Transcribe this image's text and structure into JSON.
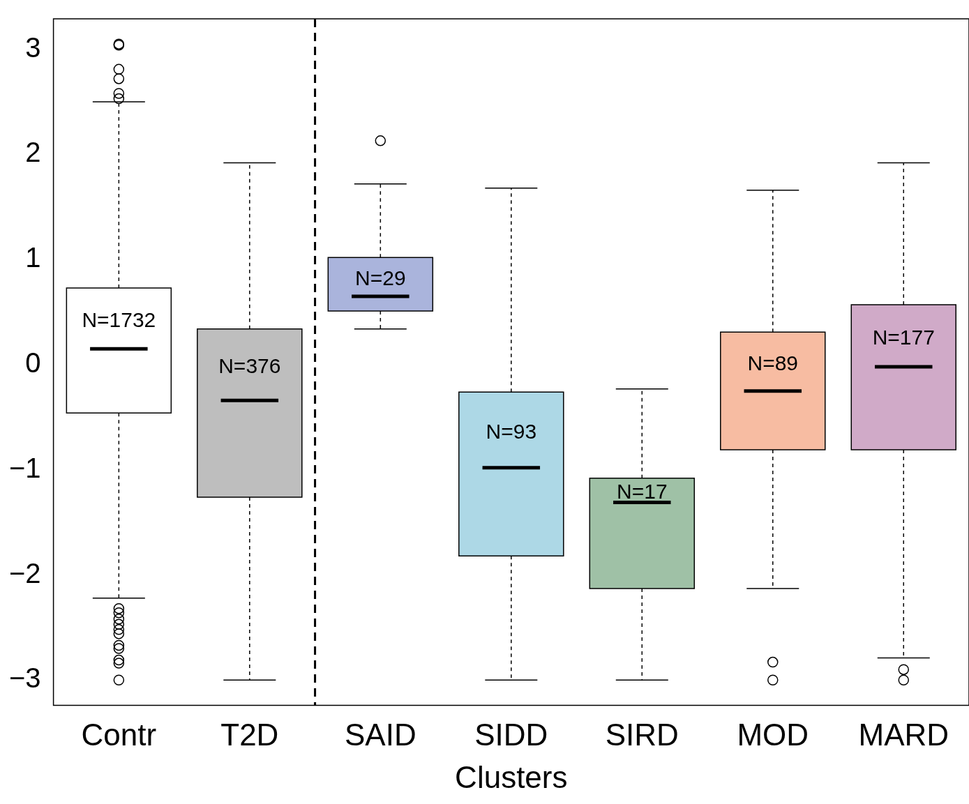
{
  "chart_data": {
    "type": "box",
    "xlabel": "Clusters",
    "categories": [
      "Contr",
      "T2D",
      "SAID",
      "SIDD",
      "SIRD",
      "MOD",
      "MARD"
    ],
    "colors": [
      "#ffffff",
      "#bebebe",
      "#aab4dc",
      "#add8e6",
      "#9fc1a6",
      "#f7bca2",
      "#d0aac8"
    ],
    "boxes": [
      {
        "low": -2.22,
        "q1": -0.46,
        "median": 0.15,
        "q3": 0.73,
        "high": 2.5,
        "outliers": [
          3.05,
          3.04,
          2.81,
          2.72,
          2.58,
          2.53,
          -2.32,
          -2.36,
          -2.42,
          -2.47,
          -2.52,
          -2.56,
          -2.67,
          -2.7,
          -2.81,
          -2.84,
          -3.0
        ]
      },
      {
        "low": -3.0,
        "q1": -1.26,
        "median": -0.34,
        "q3": 0.34,
        "high": 1.92
      },
      {
        "low": 0.34,
        "q1": 0.51,
        "median": 0.65,
        "q3": 1.02,
        "high": 1.72,
        "outliers": [
          2.13
        ]
      },
      {
        "low": -3.0,
        "q1": -1.82,
        "median": -0.98,
        "q3": -0.26,
        "high": 1.68
      },
      {
        "low": -3.0,
        "q1": -2.13,
        "median": -1.31,
        "q3": -1.08,
        "high": -0.23
      },
      {
        "low": -2.13,
        "q1": -0.81,
        "median": -0.25,
        "q3": 0.31,
        "high": 1.66,
        "outliers": [
          -2.83,
          -3.0
        ]
      },
      {
        "low": -2.79,
        "q1": -0.81,
        "median": -0.02,
        "q3": 0.57,
        "high": 1.92,
        "outliers": [
          -2.9,
          -3.0
        ]
      }
    ],
    "annotations": [
      "N=1732",
      "N=376",
      "N=29",
      "N=93",
      "N=17",
      "N=89",
      "N=177"
    ],
    "ylim": [
      -3.24,
      3.29
    ],
    "yticks": [
      -3,
      -2,
      -1,
      0,
      1,
      2,
      3
    ],
    "grid": false,
    "legend": false
  }
}
